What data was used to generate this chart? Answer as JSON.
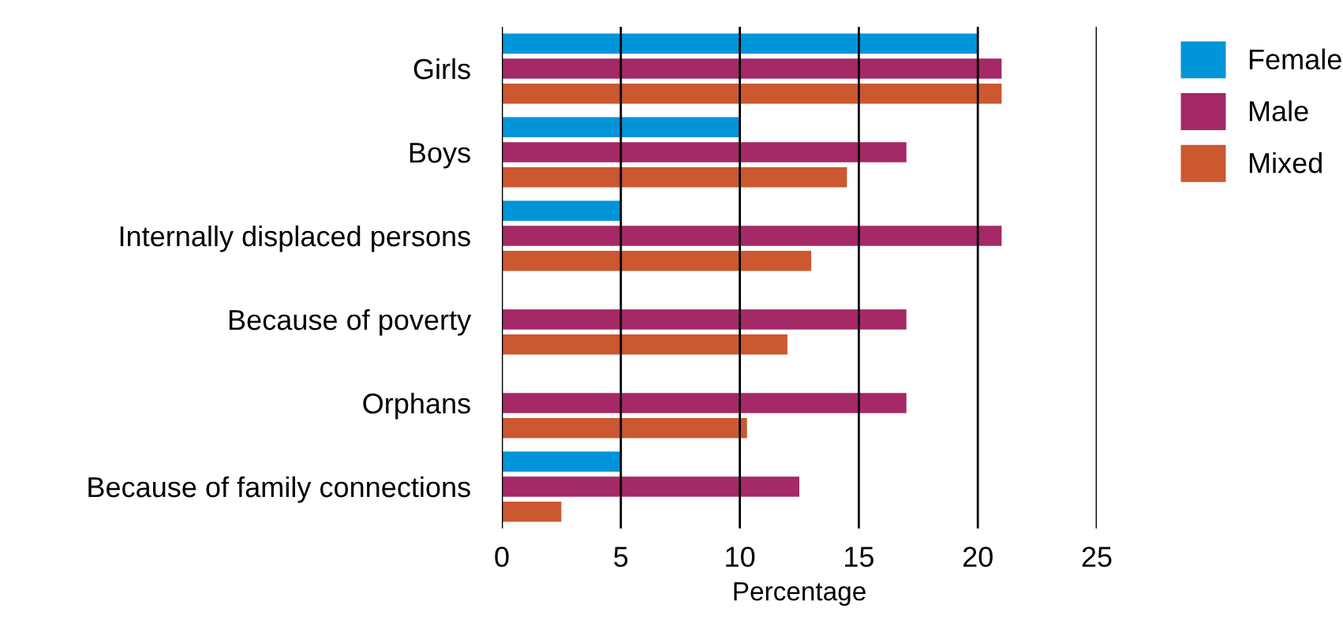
{
  "chart_data": {
    "type": "bar",
    "orientation": "horizontal",
    "xlabel": "Percentage",
    "categories": [
      "Girls",
      "Boys",
      "Internally displaced persons",
      "Because of poverty",
      "Orphans",
      "Because of family connections"
    ],
    "series": [
      {
        "name": "Female",
        "color": "#0095d9",
        "values": [
          20,
          10,
          5,
          null,
          null,
          5
        ]
      },
      {
        "name": "Male",
        "color": "#a42966",
        "values": [
          21,
          17,
          21,
          17,
          17,
          12.5
        ]
      },
      {
        "name": "Mixed",
        "color": "#cb582e",
        "values": [
          21,
          14.5,
          13,
          12,
          10.3,
          2.5
        ]
      }
    ],
    "xlim": [
      0,
      25
    ],
    "xticks": [
      0,
      5,
      10,
      15,
      20,
      25
    ],
    "grid": "x",
    "legend": "top right"
  }
}
